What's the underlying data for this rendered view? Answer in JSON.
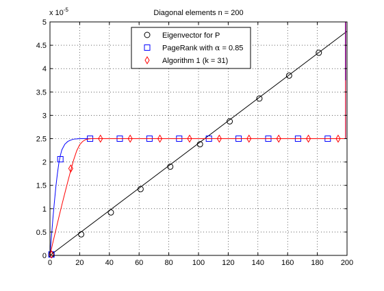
{
  "chart_data": {
    "type": "line",
    "title": "Diagonal elements n = 200",
    "xlabel": "",
    "ylabel": "",
    "xlim": [
      0,
      200
    ],
    "ylim": [
      0,
      5
    ],
    "y_exponent_label": "x 10",
    "y_exponent_power": "-5",
    "xticks": [
      0,
      20,
      40,
      60,
      80,
      100,
      120,
      140,
      160,
      180,
      200
    ],
    "yticks": [
      0,
      0.5,
      1,
      1.5,
      2,
      2.5,
      3,
      3.5,
      4,
      4.5,
      5
    ],
    "xtick_labels": [
      "0",
      "20",
      "40",
      "60",
      "80",
      "100",
      "120",
      "140",
      "160",
      "180",
      "200"
    ],
    "ytick_labels": [
      "0",
      "0.5",
      "1",
      "1.5",
      "2",
      "2.5",
      "3",
      "3.5",
      "4",
      "4.5",
      "5"
    ],
    "grid": true,
    "legend_position": "top-center",
    "series": [
      {
        "name": "Eigenvector for P",
        "color": "#000000",
        "marker": "circle",
        "line_points": {
          "x": [
            0,
            200
          ],
          "y": [
            0,
            4.8
          ]
        },
        "marker_points": {
          "x": [
            1,
            21,
            41,
            61,
            81,
            101,
            121,
            141,
            161,
            181
          ],
          "y": [
            0.02,
            0.45,
            0.92,
            1.42,
            1.9,
            2.38,
            2.87,
            3.36,
            3.85,
            4.34
          ]
        }
      },
      {
        "name": "PageRank with α = 0.85",
        "legend_prefix": "PageRank with ",
        "legend_symbol": "α",
        "legend_suffix": " = 0.85",
        "color": "#0000ff",
        "marker": "square",
        "line_points": {
          "x": [
            0,
            1,
            2,
            3,
            4,
            5,
            6,
            7,
            8,
            10,
            12,
            14,
            16,
            18,
            20,
            25,
            30,
            199,
            199,
            199
          ],
          "y": [
            0,
            0.4,
            0.8,
            1.15,
            1.48,
            1.75,
            1.98,
            2.14,
            2.26,
            2.38,
            2.44,
            2.47,
            2.49,
            2.495,
            2.5,
            2.5,
            2.5,
            2.5,
            3.75,
            5.0
          ]
        },
        "marker_points": {
          "x": [
            1,
            7,
            27,
            47,
            67,
            87,
            107,
            127,
            147,
            167,
            187
          ],
          "y": [
            0.02,
            2.06,
            2.5,
            2.5,
            2.5,
            2.5,
            2.5,
            2.5,
            2.5,
            2.5,
            2.5
          ]
        }
      },
      {
        "name": "Algorithm 1 (k = 31)",
        "color": "#ff0000",
        "marker": "diamond",
        "line_points": {
          "x": [
            0,
            2,
            4,
            6,
            8,
            10,
            12,
            14,
            16,
            18,
            20,
            22,
            24,
            26,
            28,
            30,
            199,
            199,
            199
          ],
          "y": [
            0,
            0.28,
            0.55,
            0.82,
            1.08,
            1.33,
            1.58,
            1.82,
            2.05,
            2.24,
            2.37,
            2.44,
            2.48,
            2.495,
            2.5,
            2.5,
            2.5,
            3.75,
            5.0
          ]
        },
        "marker_points": {
          "x": [
            1,
            14,
            34,
            54,
            74,
            94,
            114,
            134,
            154,
            174,
            194
          ],
          "y": [
            0.02,
            1.86,
            2.5,
            2.5,
            2.5,
            2.5,
            2.5,
            2.5,
            2.5,
            2.5,
            2.5
          ]
        }
      }
    ],
    "extra_segments": [
      {
        "color": "#7f007f",
        "x": [
          199,
          199
        ],
        "y": [
          3.75,
          5.0
        ]
      }
    ]
  }
}
